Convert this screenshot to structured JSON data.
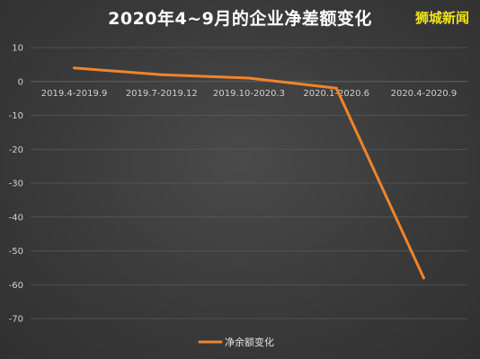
{
  "header": {
    "title": "2020年4~9月的企业净差额变化",
    "watermark": "狮城新闻"
  },
  "colors": {
    "background": "#3a3a3a",
    "line": "#f0842c",
    "grid": "#5a5a5a",
    "text": "#d0d0d0",
    "watermark": "#f2e21a"
  },
  "chart_data": {
    "type": "line",
    "title": "2020年4~9月的企业净差额变化",
    "categories": [
      "2019.4-2019.9",
      "2019.7-2019.12",
      "2019.10-2020.3",
      "2020.1-2020.6",
      "2020.4-2020.9"
    ],
    "series": [
      {
        "name": "净余额变化",
        "values": [
          4,
          2,
          1,
          -2,
          -58
        ]
      }
    ],
    "xlabel": "",
    "ylabel": "",
    "ylim": [
      -70,
      10
    ],
    "yticks": [
      10,
      0,
      -10,
      -20,
      -30,
      -40,
      -50,
      -60,
      -70
    ],
    "grid": true,
    "legend": "bottom-center"
  }
}
